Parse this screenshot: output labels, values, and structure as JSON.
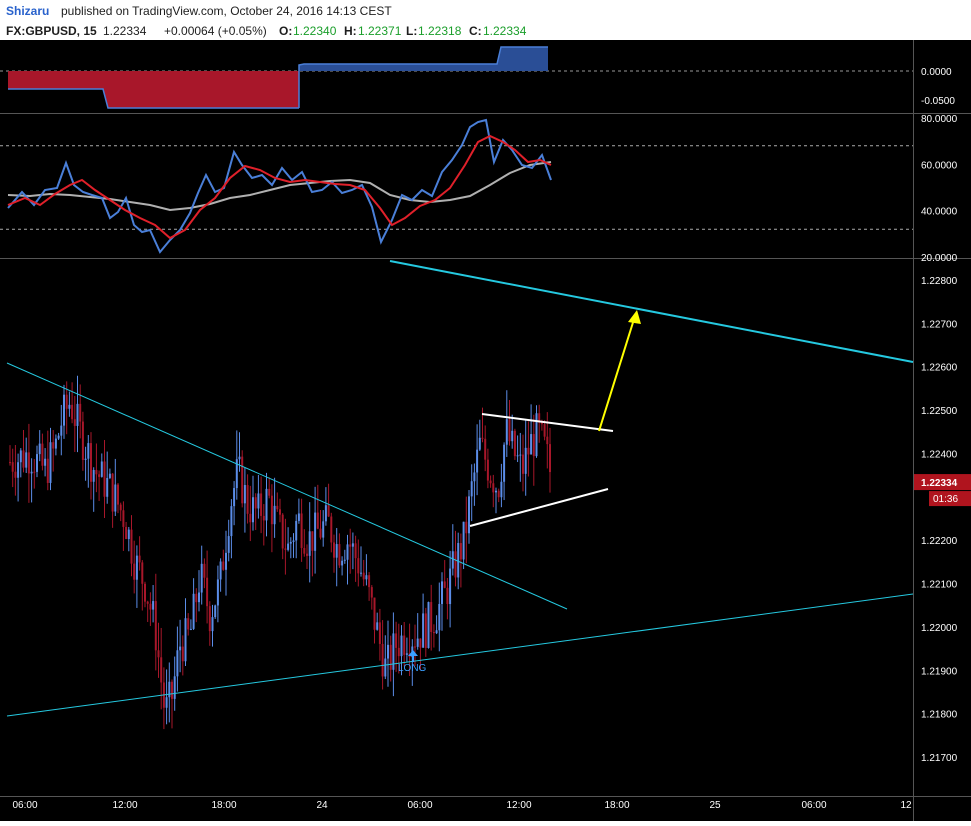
{
  "header": {
    "author": "Shizaru",
    "published_text": "published on TradingView.com, October 24, 2016 14:13 CEST",
    "symbol": "FX:GBPUSD, 15",
    "last": "1.22334",
    "change": "+0.00064 (+0.05%)",
    "open_label": "O:",
    "open": "1.22340",
    "high_label": "H:",
    "high": "1.22371",
    "low_label": "L:",
    "low": "1.22318",
    "close_label": "C:",
    "close": "1.22334"
  },
  "colors": {
    "background": "#000000",
    "up_candle": "#5b8de8",
    "down_candle": "#a8172a",
    "trendline": "#25c9e0",
    "triangle": "#ffffff",
    "arrow": "#ffff00",
    "price_tag": "#b0141e",
    "oscillator_fast": "#4a7fd8",
    "oscillator_signal": "#e0202a",
    "oscillator_slow": "#b0b0b0"
  },
  "chart_data": [
    {
      "type": "area",
      "panel": "histogram",
      "yticks": [
        "0.0000",
        "-0.0500"
      ],
      "series": [
        {
          "x": [
            "06:00",
            "22:00"
          ],
          "values": [
            -0.08,
            -0.08
          ]
        },
        {
          "x": [
            "22:00",
            "14:00"
          ],
          "values": [
            0.05,
            0.08
          ]
        }
      ]
    },
    {
      "type": "line",
      "panel": "oscillator",
      "yticks": [
        "80.0000",
        "60.0000",
        "40.0000",
        "20.0000"
      ],
      "ylim": [
        20,
        80
      ],
      "levels": [
        68,
        32
      ]
    },
    {
      "type": "candlestick",
      "panel": "price",
      "x_ticks": [
        "06:00",
        "12:00",
        "18:00",
        "24",
        "06:00",
        "12:00",
        "18:00",
        "25",
        "06:00",
        "12"
      ],
      "y_ticks": [
        "1.22800",
        "1.22700",
        "1.22600",
        "1.22500",
        "1.22400",
        "1.22200",
        "1.22100",
        "1.22000",
        "1.21900",
        "1.21800",
        "1.21700"
      ],
      "ylim": [
        1.2163,
        1.2286
      ],
      "last_price": "1.22334",
      "countdown": "01:36",
      "annotations": [
        {
          "text": "LONG"
        }
      ]
    }
  ]
}
